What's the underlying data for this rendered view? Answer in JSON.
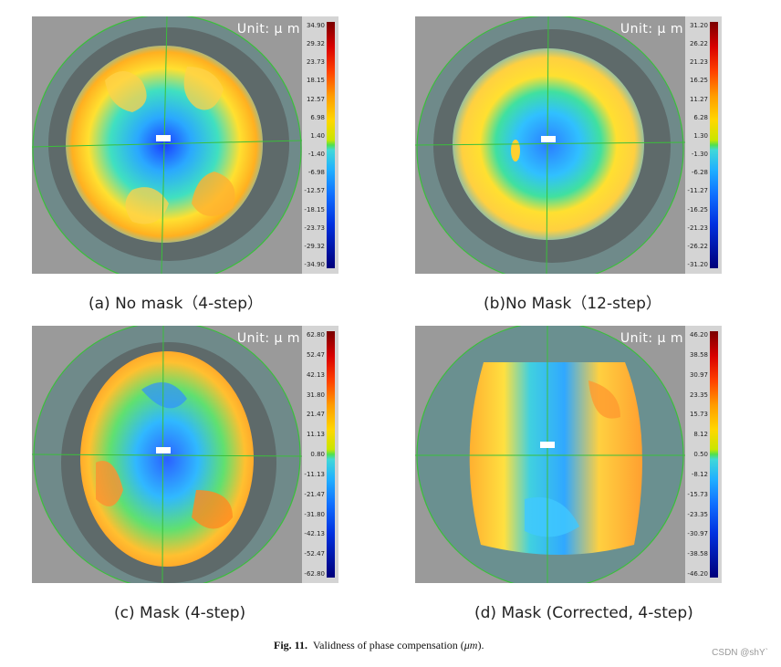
{
  "unit_label": "Unit:  μ m",
  "panels": [
    {
      "id": "a",
      "label": "(a) No mask（4-step）",
      "ticks": [
        "34.90",
        "29.32",
        "23.73",
        "18.15",
        "12.57",
        "6.98",
        "1.40",
        "-1.40",
        "-6.98",
        "-12.57",
        "-18.15",
        "-23.73",
        "-29.32",
        "-34.90"
      ]
    },
    {
      "id": "b",
      "label": "(b)No Mask（12-step）",
      "ticks": [
        "31.20",
        "26.22",
        "21.23",
        "16.25",
        "11.27",
        "6.28",
        "1.30",
        "-1.30",
        "-6.28",
        "-11.27",
        "-16.25",
        "-21.23",
        "-26.22",
        "-31.20"
      ]
    },
    {
      "id": "c",
      "label": "(c) Mask (4-step)",
      "ticks": [
        "62.80",
        "52.47",
        "42.13",
        "31.80",
        "21.47",
        "11.13",
        "0.80",
        "-11.13",
        "-21.47",
        "-31.80",
        "-42.13",
        "-52.47",
        "-62.80"
      ]
    },
    {
      "id": "d",
      "label": "(d) Mask (Corrected, 4-step)",
      "ticks": [
        "46.20",
        "38.58",
        "30.97",
        "23.35",
        "15.73",
        "8.12",
        "0.50",
        "-8.12",
        "-15.73",
        "-23.35",
        "-30.97",
        "-38.58",
        "-46.20"
      ]
    }
  ],
  "caption": {
    "prefix": "Fig. 11.",
    "text": "Validness of phase compensation (",
    "symbol": "μm",
    "suffix": ")."
  },
  "watermark": "CSDN @shY`"
}
